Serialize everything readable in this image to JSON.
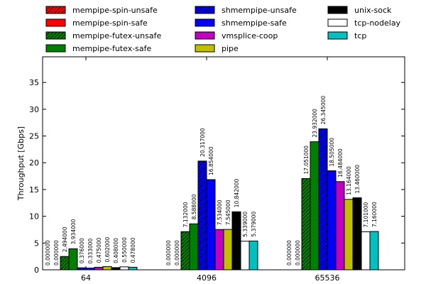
{
  "chart_data": {
    "type": "bar",
    "title": "",
    "xlabel": "",
    "ylabel": "Throughput [Gbps]",
    "ylim": [
      0,
      39.8
    ],
    "yticks": [
      0,
      5,
      10,
      15,
      20,
      25,
      30,
      35
    ],
    "categories": [
      "64",
      "4096",
      "65536"
    ],
    "legend_position": "top",
    "series": [
      {
        "name": "mempipe-spin-unsafe",
        "color": "#ff0000",
        "hatch": true,
        "values": [
          0.0,
          0.0,
          0.0
        ],
        "labels": [
          "0.000000",
          "0.000000",
          "0.000000"
        ]
      },
      {
        "name": "mempipe-spin-safe",
        "color": "#ff0000",
        "hatch": false,
        "values": [
          0.0,
          0.0,
          0.0
        ],
        "labels": [
          "0.000000",
          "0.000000",
          "0.000000"
        ]
      },
      {
        "name": "mempipe-futex-unsafe",
        "color": "#008000",
        "hatch": true,
        "values": [
          2.494,
          7.132,
          17.051
        ],
        "labels": [
          "2.494000",
          "7.132000",
          "17.051000"
        ]
      },
      {
        "name": "mempipe-futex-safe",
        "color": "#008000",
        "hatch": false,
        "values": [
          3.934,
          8.588,
          23.932
        ],
        "labels": [
          "3.934000",
          "8.588000",
          "23.932000"
        ]
      },
      {
        "name": "shmempipe-unsafe",
        "color": "#0000ff",
        "hatch": true,
        "values": [
          0.376,
          20.317,
          26.345
        ],
        "labels": [
          "0.376000",
          "20.317000",
          "26.345000"
        ]
      },
      {
        "name": "shmempipe-safe",
        "color": "#0000ff",
        "hatch": false,
        "values": [
          0.333,
          16.854,
          18.505
        ],
        "labels": [
          "0.333000",
          "16.854000",
          "18.505000"
        ]
      },
      {
        "name": "vmsplice-coop",
        "color": "#c000c0",
        "hatch": false,
        "values": [
          0.475,
          7.534,
          16.484
        ],
        "labels": [
          "0.475000",
          "7.534000",
          "16.484000"
        ]
      },
      {
        "name": "pipe",
        "color": "#c0c000",
        "hatch": false,
        "values": [
          0.602,
          7.545,
          13.164
        ],
        "labels": [
          "0.602000",
          "7.545000",
          "13.164000"
        ]
      },
      {
        "name": "unix-sock",
        "color": "#000000",
        "hatch": false,
        "values": [
          0.408,
          10.842,
          13.46
        ],
        "labels": [
          "0.408000",
          "10.842000",
          "13.460000"
        ]
      },
      {
        "name": "tcp-nodelay",
        "color": "#ffffff",
        "hatch": false,
        "values": [
          0.55,
          5.339,
          7.101
        ],
        "labels": [
          "0.550000",
          "5.339000",
          "7.101000"
        ]
      },
      {
        "name": "tcp",
        "color": "#00c0c0",
        "hatch": false,
        "values": [
          0.478,
          5.379,
          7.16
        ],
        "labels": [
          "0.478000",
          "5.379000",
          "7.160000"
        ]
      }
    ]
  }
}
